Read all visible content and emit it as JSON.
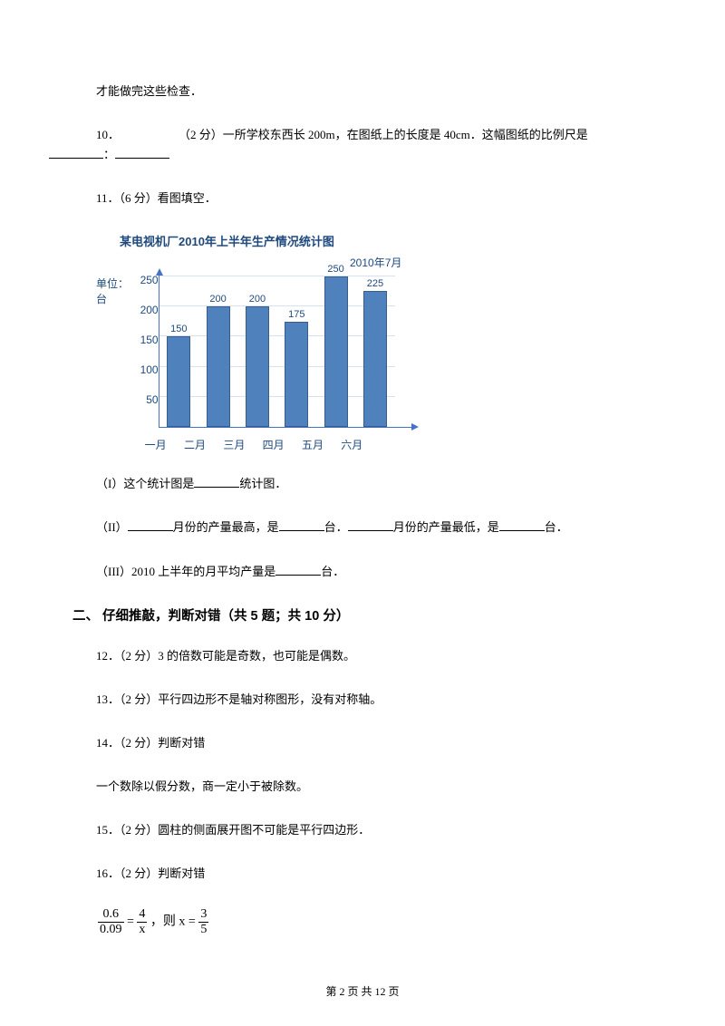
{
  "intro_tail": "才能做完这些检查．",
  "q10": {
    "num": "10．",
    "pts": "（2 分）",
    "text_a": "一所学校东西长 200m，在图纸上的长度是 40cm．这幅图纸的比例尺是",
    "sep": "："
  },
  "q11": {
    "num": "11．",
    "pts": "（6 分）",
    "text": "看图填空．"
  },
  "chart": {
    "type": "bar",
    "title": "某电视机厂2010年上半年生产情况统计图",
    "subtitle": "2010年7月",
    "y_unit": "单位：台",
    "categories": [
      "一月",
      "二月",
      "三月",
      "四月",
      "五月",
      "六月"
    ],
    "values": [
      150,
      200,
      200,
      175,
      250,
      225
    ],
    "yticks": [
      250,
      200,
      150,
      100,
      50
    ],
    "ylim": [
      0,
      255
    ],
    "bar_color": "#4f81bd",
    "bar_border": "#385d8a",
    "grid_color": "#d6e1f1",
    "axis_color": "#4472c4",
    "text_color": "#1f497d"
  },
  "q11_i": {
    "pre": "（I）这个统计图是",
    "post": "统计图．"
  },
  "q11_ii": {
    "a": "（II）",
    "b": "月份的产量最高，是",
    "c": "台．",
    "d": "月份的产量最低，是",
    "e": "台．"
  },
  "q11_iii": {
    "a": "（III）2010 上半年的月平均产量是",
    "b": "台．"
  },
  "section2": "二、 仔细推敲，判断对错（共 5 题；共 10 分）",
  "q12": "12．（2 分）3 的倍数可能是奇数，也可能是偶数。",
  "q13": "13．（2 分）平行四边形不是轴对称图形，没有对称轴。",
  "q14": "14．（2 分）判断对错",
  "q14_body": "一个数除以假分数，商一定小于被除数。",
  "q15": "15．（2 分）圆柱的侧面展开图不可能是平行四边形．",
  "q16": "16．（2 分）判断对错",
  "eq": {
    "lhs_num": "0.6",
    "lhs_den": "0.09",
    "mid": " = ",
    "rhs1_num": "4",
    "rhs1_den": "x",
    "then": "，则 x = ",
    "rhs2_num": "3",
    "rhs2_den": "5"
  },
  "footer": "第 2 页 共 12 页"
}
